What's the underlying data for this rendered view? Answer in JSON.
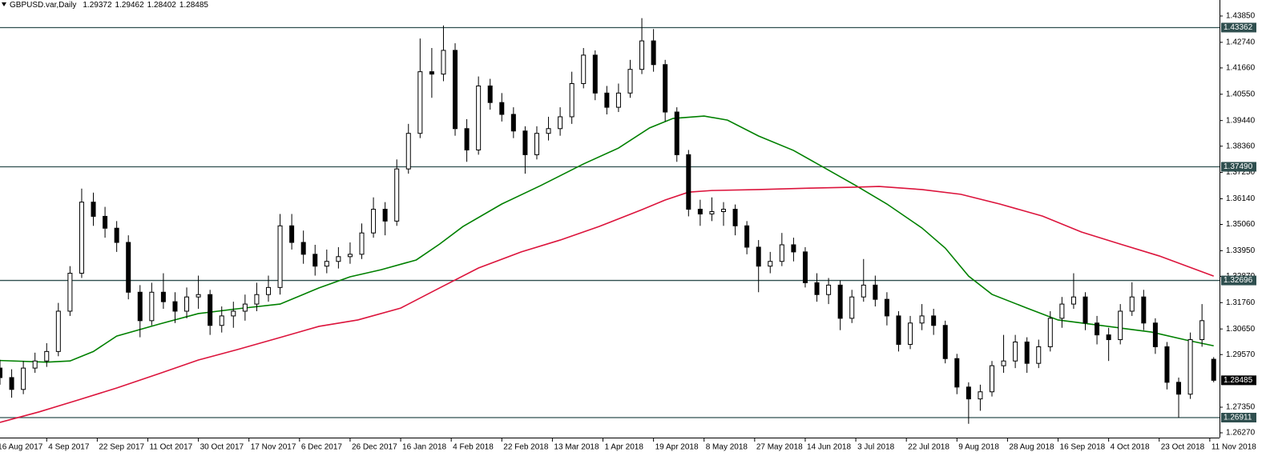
{
  "chart_data": {
    "type": "candlestick",
    "title": "GBPUSD.var,Daily",
    "xlim": [
      1,
      314.5
    ],
    "xticks": [
      {
        "value": 0,
        "label": "16 Aug 2017"
      },
      {
        "value": 13,
        "label": "4 Sep 2017"
      },
      {
        "value": 26,
        "label": "22 Sep 2017"
      },
      {
        "value": 39,
        "label": "11 Oct 2017"
      },
      {
        "value": 52,
        "label": "30 Oct 2017"
      },
      {
        "value": 65,
        "label": "17 Nov 2017"
      },
      {
        "value": 78,
        "label": "6 Dec 2017"
      },
      {
        "value": 91,
        "label": "26 Dec 2017"
      },
      {
        "value": 104,
        "label": "16 Jan 2018"
      },
      {
        "value": 117,
        "label": "4 Feb 2018"
      },
      {
        "value": 130,
        "label": "22 Feb 2018"
      },
      {
        "value": 143,
        "label": "13 Mar 2018"
      },
      {
        "value": 156,
        "label": "1 Apr 2018"
      },
      {
        "value": 169,
        "label": "19 Apr 2018"
      },
      {
        "value": 182,
        "label": "8 May 2018"
      },
      {
        "value": 195,
        "label": "27 May 2018"
      },
      {
        "value": 208,
        "label": "14 Jun 2018"
      },
      {
        "value": 221,
        "label": "3 Jul 2018"
      },
      {
        "value": 234,
        "label": "22 Jul 2018"
      },
      {
        "value": 247,
        "label": "9 Aug 2018"
      },
      {
        "value": 260,
        "label": "28 Aug 2018"
      },
      {
        "value": 273,
        "label": "16 Sep 2018"
      },
      {
        "value": 286,
        "label": "4 Oct 2018"
      },
      {
        "value": 299,
        "label": "23 Oct 2018"
      },
      {
        "value": 312,
        "label": "11 Nov 2018"
      }
    ],
    "ylim": [
      1.26068,
      1.44525
    ],
    "yticks": [
      {
        "value": 1.4385,
        "label": "1.43850"
      },
      {
        "value": 1.4274,
        "label": "1.42740"
      },
      {
        "value": 1.4166,
        "label": "1.41660"
      },
      {
        "value": 1.4055,
        "label": "1.40550"
      },
      {
        "value": 1.3944,
        "label": "1.39440"
      },
      {
        "value": 1.3836,
        "label": "1.38360"
      },
      {
        "value": 1.3725,
        "label": "1.37250"
      },
      {
        "value": 1.3614,
        "label": "1.36140"
      },
      {
        "value": 1.3506,
        "label": "1.35060"
      },
      {
        "value": 1.3395,
        "label": "1.33950"
      },
      {
        "value": 1.3287,
        "label": "1.32870"
      },
      {
        "value": 1.3176,
        "label": "1.31760"
      },
      {
        "value": 1.3065,
        "label": "1.30650"
      },
      {
        "value": 1.2957,
        "label": "1.29570"
      },
      {
        "value": 1.2735,
        "label": "1.27350"
      },
      {
        "value": 1.2627,
        "label": "1.26270"
      }
    ],
    "levels": [
      1.43362,
      {
        "value": 1.3749,
        "label": "1.37490"
      },
      1.32696,
      1.26911
    ],
    "level_color": "#2f4f4f",
    "up_color": "#ffffff",
    "down_color": "#000000",
    "x": [
      1,
      4,
      7,
      10,
      13,
      16,
      19,
      22,
      25,
      28,
      31,
      34,
      37,
      40,
      43,
      46,
      49,
      52,
      55,
      58,
      61,
      64,
      67,
      70,
      73,
      76,
      79,
      82,
      85,
      88,
      91,
      94,
      97,
      100,
      103,
      106,
      109,
      112,
      115,
      118,
      121,
      124,
      127,
      130,
      133,
      136,
      139,
      142,
      145,
      148,
      151,
      154,
      157,
      160,
      163,
      166,
      169,
      172,
      175,
      178,
      181,
      184,
      187,
      190,
      193,
      196,
      199,
      202,
      205,
      208,
      211,
      214,
      217,
      220,
      223,
      226,
      229,
      232,
      235,
      238,
      241,
      244,
      247,
      250,
      253,
      256,
      259,
      262,
      265,
      268,
      271,
      274,
      277,
      280,
      283,
      286,
      289,
      292,
      295,
      298,
      301,
      304,
      307,
      310,
      313
    ],
    "candles": [
      [
        1.29,
        1.2935,
        1.283,
        1.286
      ],
      [
        1.286,
        1.2895,
        1.2775,
        1.281
      ],
      [
        1.281,
        1.293,
        1.279,
        1.29
      ],
      [
        1.29,
        1.2965,
        1.288,
        1.293
      ],
      [
        1.293,
        1.3005,
        1.2905,
        1.297
      ],
      [
        1.297,
        1.3175,
        1.295,
        1.314
      ],
      [
        1.314,
        1.333,
        1.312,
        1.33
      ],
      [
        1.33,
        1.3657,
        1.328,
        1.36
      ],
      [
        1.36,
        1.364,
        1.35,
        1.354
      ],
      [
        1.354,
        1.358,
        1.345,
        1.349
      ],
      [
        1.349,
        1.352,
        1.339,
        1.343
      ],
      [
        1.343,
        1.346,
        1.319,
        1.322
      ],
      [
        1.322,
        1.325,
        1.303,
        1.31
      ],
      [
        1.31,
        1.326,
        1.308,
        1.322
      ],
      [
        1.322,
        1.33,
        1.315,
        1.318
      ],
      [
        1.318,
        1.322,
        1.309,
        1.314
      ],
      [
        1.314,
        1.324,
        1.311,
        1.32
      ],
      [
        1.32,
        1.329,
        1.315,
        1.321
      ],
      [
        1.321,
        1.323,
        1.304,
        1.308
      ],
      [
        1.308,
        1.316,
        1.305,
        1.312
      ],
      [
        1.312,
        1.318,
        1.307,
        1.314
      ],
      [
        1.314,
        1.321,
        1.31,
        1.317
      ],
      [
        1.317,
        1.326,
        1.314,
        1.321
      ],
      [
        1.321,
        1.329,
        1.318,
        1.324
      ],
      [
        1.324,
        1.355,
        1.321,
        1.35
      ],
      [
        1.35,
        1.355,
        1.34,
        1.343
      ],
      [
        1.343,
        1.348,
        1.334,
        1.338
      ],
      [
        1.338,
        1.342,
        1.329,
        1.333
      ],
      [
        1.333,
        1.34,
        1.33,
        1.335
      ],
      [
        1.335,
        1.341,
        1.332,
        1.337
      ],
      [
        1.337,
        1.343,
        1.334,
        1.338
      ],
      [
        1.338,
        1.351,
        1.336,
        1.347
      ],
      [
        1.347,
        1.362,
        1.345,
        1.357
      ],
      [
        1.357,
        1.36,
        1.346,
        1.352
      ],
      [
        1.352,
        1.378,
        1.35,
        1.374
      ],
      [
        1.374,
        1.393,
        1.372,
        1.389
      ],
      [
        1.389,
        1.429,
        1.387,
        1.415
      ],
      [
        1.415,
        1.425,
        1.404,
        1.414
      ],
      [
        1.414,
        1.4345,
        1.411,
        1.424
      ],
      [
        1.424,
        1.427,
        1.388,
        1.391
      ],
      [
        1.391,
        1.395,
        1.377,
        1.382
      ],
      [
        1.382,
        1.413,
        1.38,
        1.409
      ],
      [
        1.409,
        1.412,
        1.399,
        1.402
      ],
      [
        1.402,
        1.406,
        1.394,
        1.397
      ],
      [
        1.397,
        1.4,
        1.387,
        1.39
      ],
      [
        1.39,
        1.392,
        1.372,
        1.38
      ],
      [
        1.38,
        1.392,
        1.378,
        1.389
      ],
      [
        1.389,
        1.396,
        1.386,
        1.391
      ],
      [
        1.391,
        1.4,
        1.388,
        1.396
      ],
      [
        1.396,
        1.415,
        1.393,
        1.41
      ],
      [
        1.41,
        1.425,
        1.408,
        1.422
      ],
      [
        1.422,
        1.424,
        1.403,
        1.406
      ],
      [
        1.406,
        1.409,
        1.397,
        1.4
      ],
      [
        1.4,
        1.41,
        1.398,
        1.406
      ],
      [
        1.406,
        1.42,
        1.404,
        1.416
      ],
      [
        1.416,
        1.4376,
        1.414,
        1.428
      ],
      [
        1.428,
        1.433,
        1.415,
        1.418
      ],
      [
        1.418,
        1.42,
        1.394,
        1.398
      ],
      [
        1.398,
        1.4,
        1.377,
        1.38
      ],
      [
        1.38,
        1.382,
        1.354,
        1.357
      ],
      [
        1.357,
        1.361,
        1.35,
        1.355
      ],
      [
        1.355,
        1.362,
        1.352,
        1.356
      ],
      [
        1.356,
        1.36,
        1.35,
        1.357
      ],
      [
        1.357,
        1.359,
        1.346,
        1.35
      ],
      [
        1.35,
        1.352,
        1.338,
        1.341
      ],
      [
        1.341,
        1.344,
        1.322,
        1.333
      ],
      [
        1.333,
        1.339,
        1.33,
        1.335
      ],
      [
        1.335,
        1.347,
        1.333,
        1.342
      ],
      [
        1.342,
        1.345,
        1.335,
        1.339
      ],
      [
        1.339,
        1.341,
        1.324,
        1.326
      ],
      [
        1.326,
        1.33,
        1.318,
        1.321
      ],
      [
        1.321,
        1.328,
        1.317,
        1.325
      ],
      [
        1.325,
        1.327,
        1.306,
        1.311
      ],
      [
        1.311,
        1.323,
        1.309,
        1.32
      ],
      [
        1.32,
        1.336,
        1.318,
        1.325
      ],
      [
        1.325,
        1.329,
        1.316,
        1.319
      ],
      [
        1.319,
        1.322,
        1.308,
        1.312
      ],
      [
        1.312,
        1.314,
        1.297,
        1.3
      ],
      [
        1.3,
        1.312,
        1.298,
        1.309
      ],
      [
        1.309,
        1.317,
        1.306,
        1.312
      ],
      [
        1.312,
        1.315,
        1.304,
        1.308
      ],
      [
        1.308,
        1.31,
        1.292,
        1.294
      ],
      [
        1.294,
        1.296,
        1.279,
        1.282
      ],
      [
        1.282,
        1.284,
        1.2665,
        1.277
      ],
      [
        1.277,
        1.283,
        1.272,
        1.28
      ],
      [
        1.28,
        1.293,
        1.278,
        1.291
      ],
      [
        1.291,
        1.304,
        1.288,
        1.293
      ],
      [
        1.293,
        1.304,
        1.29,
        1.301
      ],
      [
        1.301,
        1.303,
        1.288,
        1.292
      ],
      [
        1.292,
        1.302,
        1.29,
        1.299
      ],
      [
        1.299,
        1.314,
        1.297,
        1.311
      ],
      [
        1.311,
        1.32,
        1.307,
        1.317
      ],
      [
        1.317,
        1.33,
        1.315,
        1.32
      ],
      [
        1.32,
        1.322,
        1.306,
        1.309
      ],
      [
        1.309,
        1.312,
        1.3,
        1.304
      ],
      [
        1.304,
        1.307,
        1.293,
        1.302
      ],
      [
        1.302,
        1.317,
        1.3,
        1.314
      ],
      [
        1.314,
        1.3262,
        1.312,
        1.32
      ],
      [
        1.32,
        1.323,
        1.306,
        1.309
      ],
      [
        1.309,
        1.311,
        1.296,
        1.299
      ],
      [
        1.299,
        1.301,
        1.281,
        1.284
      ],
      [
        1.284,
        1.286,
        1.2691,
        1.279
      ],
      [
        1.279,
        1.305,
        1.277,
        1.302
      ],
      [
        1.302,
        1.317,
        1.299,
        1.31
      ],
      [
        1.29372,
        1.29462,
        1.28402,
        1.28485
      ]
    ],
    "moving_averages": [
      {
        "color": "#008000",
        "x": [
          1,
          13,
          19,
          25,
          31,
          42,
          52,
          62,
          73,
          83,
          91,
          99,
          108,
          114,
          120,
          130,
          140,
          151,
          160,
          168,
          174,
          182,
          188,
          196,
          205,
          213,
          221,
          229,
          238,
          244,
          250,
          256,
          265,
          273,
          281,
          289,
          297,
          306,
          313
        ],
        "values": [
          1.2932,
          1.2925,
          1.293,
          1.297,
          1.3035,
          1.3086,
          1.313,
          1.315,
          1.317,
          1.3238,
          1.3285,
          1.3315,
          1.3356,
          1.3423,
          1.3497,
          1.3592,
          1.367,
          1.3761,
          1.3828,
          1.3913,
          1.3953,
          1.3963,
          1.3946,
          1.3879,
          1.3818,
          1.3744,
          1.367,
          1.3592,
          1.3491,
          1.3406,
          1.3288,
          1.3211,
          1.3153,
          1.3103,
          1.3086,
          1.3069,
          1.3052,
          1.3018,
          1.2994
        ]
      },
      {
        "color": "#dc143c",
        "x": [
          1,
          11,
          21,
          31,
          42,
          52,
          62,
          73,
          83,
          93,
          104,
          114,
          124,
          135,
          145,
          155,
          166,
          172,
          178,
          184,
          196,
          209,
          221,
          227,
          238,
          248,
          258,
          269,
          279,
          289,
          299,
          313
        ],
        "values": [
          1.2671,
          1.2715,
          1.2765,
          1.2816,
          1.2877,
          1.2934,
          1.2978,
          1.3029,
          1.3076,
          1.3103,
          1.3153,
          1.3238,
          1.3322,
          1.339,
          1.344,
          1.3497,
          1.3568,
          1.3609,
          1.3642,
          1.3649,
          1.3653,
          1.3659,
          1.3663,
          1.3666,
          1.3653,
          1.3633,
          1.3592,
          1.3541,
          1.3474,
          1.3423,
          1.3373,
          1.3288
        ]
      }
    ]
  }
}
